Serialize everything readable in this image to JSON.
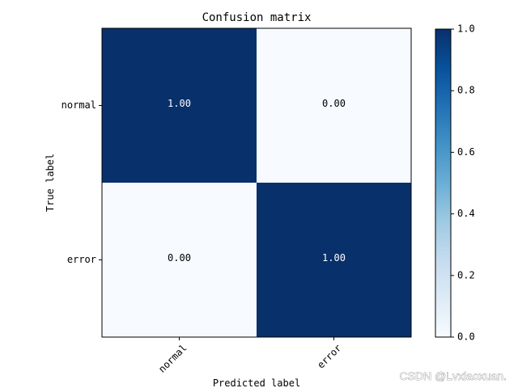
{
  "chart_data": {
    "type": "heatmap",
    "title": "Confusion matrix",
    "xlabel": "Predicted label",
    "ylabel": "True label",
    "x_categories": [
      "normal",
      "error"
    ],
    "y_categories": [
      "normal",
      "error"
    ],
    "values": [
      [
        1.0,
        0.0
      ],
      [
        0.0,
        1.0
      ]
    ],
    "cell_labels": [
      [
        "1.00",
        "0.00"
      ],
      [
        "0.00",
        "1.00"
      ]
    ],
    "colormap": "Blues",
    "colors": {
      "low": "#f7fbff",
      "high": "#08306b",
      "text_on_dark": "#ffffff",
      "text_on_light": "#000000"
    },
    "colorbar": {
      "range": [
        0.0,
        1.0
      ],
      "ticks": [
        "0.0",
        "0.2",
        "0.4",
        "0.6",
        "0.8",
        "1.0"
      ]
    },
    "x_tick_rotation": 45,
    "grid": false
  },
  "watermark": "CSDN @Lvxiaoxuan."
}
